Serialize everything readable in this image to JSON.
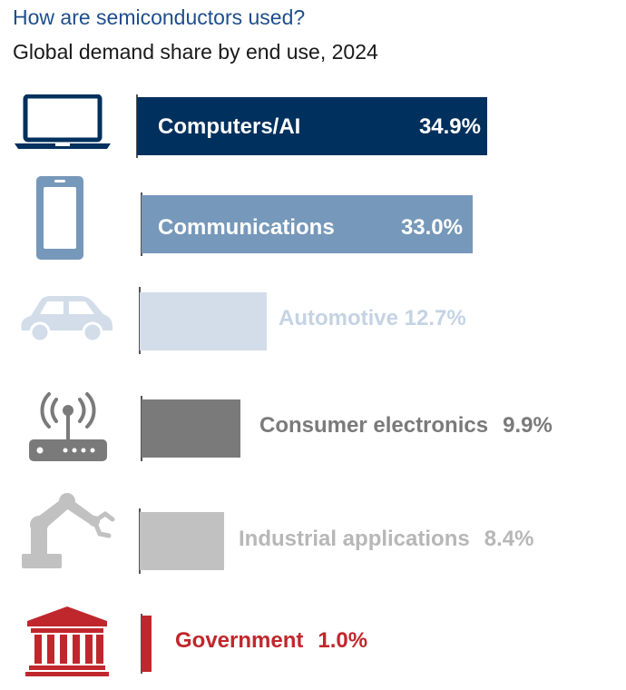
{
  "header": {
    "title": "How are semiconductors used?",
    "subtitle": "Global demand share by end use, 2024"
  },
  "chart_data": {
    "type": "bar",
    "orientation": "horizontal",
    "title": "How are semiconductors used?",
    "subtitle": "Global demand share by end use, 2024",
    "unit": "%",
    "categories": [
      "Computers/AI",
      "Communications",
      "Automotive",
      "Consumer electronics",
      "Industrial applications",
      "Government"
    ],
    "values": [
      34.9,
      33.0,
      12.7,
      9.9,
      8.4,
      1.0
    ],
    "value_labels": [
      "34.9%",
      "33.0%",
      "12.7%",
      "9.9%",
      "8.4%",
      "1.0%"
    ],
    "colors": [
      "#00305d",
      "#7698ba",
      "#d3dde9",
      "#7a7a7a",
      "#c1c1c1",
      "#c0272d"
    ],
    "icons": [
      "laptop-icon",
      "smartphone-icon",
      "car-icon",
      "router-icon",
      "robot-arm-icon",
      "government-building-icon"
    ]
  }
}
